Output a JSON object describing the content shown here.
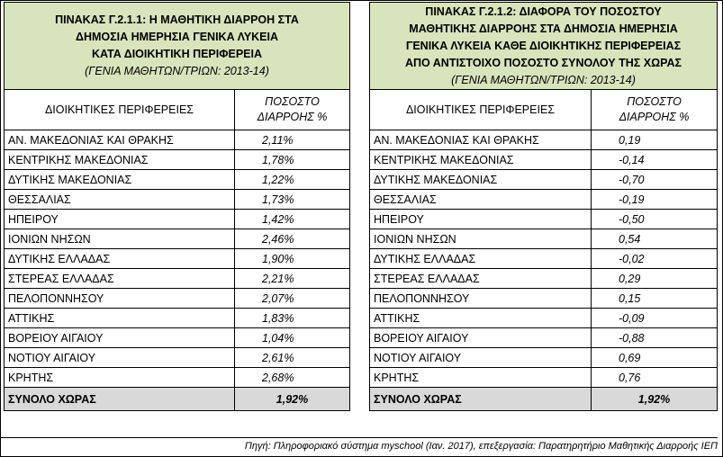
{
  "left_table": {
    "title_lines": [
      "ΠΙΝΑΚΑΣ Γ.2.1.1: Η ΜΑΘΗΤΙΚΗ ΔΙΑΡΡΟΗ ΣΤΑ",
      "ΔΗΜΟΣΙΑ ΗΜΕΡΗΣΙΑ ΓΕΝΙΚΑ ΛΥΚΕΙΑ",
      "ΚΑΤΑ ΔΙΟΙΚΗΤΙΚΗ ΠΕΡΙΦΕΡΕΙΑ"
    ],
    "subtitle": "(ΓΕΝΙΑ ΜΑΘΗΤΩΝ/ΤΡΙΩΝ: 2013-14)",
    "col_region": "ΔΙΟΙΚΗΤΙΚΕΣ ΠΕΡΙΦΕΡΕΙΕΣ",
    "col_value_line1": "ΠΟΣΟΣΤΟ",
    "col_value_line2": "ΔΙΑΡΡΟΗΣ %",
    "rows": [
      {
        "region": "ΑΝ. ΜΑΚΕΔΟΝΙΑΣ ΚΑΙ ΘΡΑΚΗΣ",
        "value": "2,11%"
      },
      {
        "region": "ΚΕΝΤΡΙΚΗΣ ΜΑΚΕΔΟΝΙΑΣ",
        "value": "1,78%"
      },
      {
        "region": "ΔΥΤΙΚΗΣ ΜΑΚΕΔΟΝΙΑΣ",
        "value": "1,22%"
      },
      {
        "region": "ΘΕΣΣΑΛΙΑΣ",
        "value": "1,73%"
      },
      {
        "region": "ΗΠΕΙΡΟΥ",
        "value": "1,42%"
      },
      {
        "region": "ΙΟΝΙΩΝ ΝΗΣΩΝ",
        "value": "2,46%"
      },
      {
        "region": "ΔΥΤΙΚΗΣ ΕΛΛΑΔΑΣ",
        "value": "1,90%"
      },
      {
        "region": "ΣΤΕΡΕΑΣ ΕΛΛΑΔΑΣ",
        "value": "2,21%"
      },
      {
        "region": "ΠΕΛΟΠΟΝΝΗΣΟΥ",
        "value": "2,07%"
      },
      {
        "region": "ΑΤΤΙΚΗΣ",
        "value": "1,83%"
      },
      {
        "region": "ΒΟΡΕΙΟΥ ΑΙΓΑΙΟΥ",
        "value": "1,04%"
      },
      {
        "region": "ΝΟΤΙΟΥ ΑΙΓΑΙΟΥ",
        "value": "2,61%"
      },
      {
        "region": "ΚΡΗΤΗΣ",
        "value": "2,68%"
      }
    ],
    "total_label": "ΣΥΝΟΛΟ ΧΩΡΑΣ",
    "total_value": "1,92%"
  },
  "right_table": {
    "title_lines": [
      "ΠΙΝΑΚΑΣ Γ.2.1.2: ΔΙΑΦΟΡΑ ΤΟΥ ΠΟΣΟΣΤΟΥ",
      "ΜΑΘΗΤΙΚΗΣ ΔΙΑΡΡΟΗΣ ΣΤΑ ΔΗΜΟΣΙΑ ΗΜΕΡΗΣΙΑ",
      "ΓΕΝΙΚΑ ΛΥΚΕΙΑ ΚΑΘΕ ΔΙΟΙΚΗΤΙΚΗΣ ΠΕΡΙΦΕΡΕΙΑΣ",
      "ΑΠΟ ΑΝΤΙΣΤΟΙΧΟ ΠΟΣΟΣΤΟ ΣΥΝΟΛΟΥ ΤΗΣ ΧΩΡΑΣ"
    ],
    "subtitle": "(ΓΕΝΙΑ ΜΑΘΗΤΩΝ/ΤΡΙΩΝ: 2013-14)",
    "col_region": "ΔΙΟΙΚΗΤΙΚΕΣ ΠΕΡΙΦΕΡΕΙΕΣ",
    "col_value_line1": "ΠΟΣΟΣΤΟ",
    "col_value_line2": "ΔΙΑΡΡΟΗΣ %",
    "rows": [
      {
        "region": "ΑΝ. ΜΑΚΕΔΟΝΙΑΣ ΚΑΙ ΘΡΑΚΗΣ",
        "value": "0,19"
      },
      {
        "region": "ΚΕΝΤΡΙΚΗΣ ΜΑΚΕΔΟΝΙΑΣ",
        "value": "-0,14"
      },
      {
        "region": "ΔΥΤΙΚΗΣ ΜΑΚΕΔΟΝΙΑΣ",
        "value": "-0,70"
      },
      {
        "region": "ΘΕΣΣΑΛΙΑΣ",
        "value": "-0,19"
      },
      {
        "region": "ΗΠΕΙΡΟΥ",
        "value": "-0,50"
      },
      {
        "region": "ΙΟΝΙΩΝ ΝΗΣΩΝ",
        "value": "0,54"
      },
      {
        "region": "ΔΥΤΙΚΗΣ ΕΛΛΑΔΑΣ",
        "value": "-0,02"
      },
      {
        "region": "ΣΤΕΡΕΑΣ ΕΛΛΑΔΑΣ",
        "value": "0,29"
      },
      {
        "region": "ΠΕΛΟΠΟΝΝΗΣΟΥ",
        "value": "0,15"
      },
      {
        "region": "ΑΤΤΙΚΗΣ",
        "value": "-0,09"
      },
      {
        "region": "ΒΟΡΕΙΟΥ ΑΙΓΑΙΟΥ",
        "value": "-0,88"
      },
      {
        "region": "ΝΟΤΙΟΥ ΑΙΓΑΙΟΥ",
        "value": "0,69"
      },
      {
        "region": "ΚΡΗΤΗΣ",
        "value": "0,76"
      }
    ],
    "total_label": "ΣΥΝΟΛΟ ΧΩΡΑΣ",
    "total_value": "1,92%"
  },
  "source_note": "Πηγή: Πληροφοριακό σύστημα myschool (Ιαν. 2017), επεξεργασία: Παρατηρητήριο Μαθητικής Διαρροής ΙΕΠ",
  "colors": {
    "header_bg": "#d8e4bc",
    "total_bg": "#d9d9d9"
  }
}
